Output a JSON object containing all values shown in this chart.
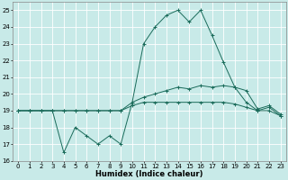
{
  "xlabel": "Humidex (Indice chaleur)",
  "background_color": "#c8eae8",
  "grid_color": "#ffffff",
  "line_color": "#1a6b5a",
  "xlim": [
    -0.5,
    23.5
  ],
  "ylim": [
    16,
    25.5
  ],
  "yticks": [
    16,
    17,
    18,
    19,
    20,
    21,
    22,
    23,
    24,
    25
  ],
  "xticks": [
    0,
    1,
    2,
    3,
    4,
    5,
    6,
    7,
    8,
    9,
    10,
    11,
    12,
    13,
    14,
    15,
    16,
    17,
    18,
    19,
    20,
    21,
    22,
    23
  ],
  "series1_y": [
    19,
    19,
    19,
    19,
    16.5,
    18,
    17.5,
    17,
    17.5,
    17,
    19.5,
    23,
    24,
    24.7,
    25,
    24.3,
    25,
    23.5,
    21.9,
    20.4,
    19.5,
    19,
    19.2,
    18.7
  ],
  "series2_y": [
    19,
    19,
    19,
    19,
    19,
    19,
    19,
    19,
    19,
    19,
    19.3,
    19.5,
    19.5,
    19.5,
    19.5,
    19.5,
    19.5,
    19.5,
    19.5,
    19.4,
    19.2,
    19,
    19,
    18.7
  ],
  "series3_y": [
    19,
    19,
    19,
    19,
    19,
    19,
    19,
    19,
    19,
    19,
    19.5,
    19.8,
    20.0,
    20.2,
    20.4,
    20.3,
    20.5,
    20.4,
    20.5,
    20.4,
    20.2,
    19.1,
    19.3,
    18.8
  ]
}
